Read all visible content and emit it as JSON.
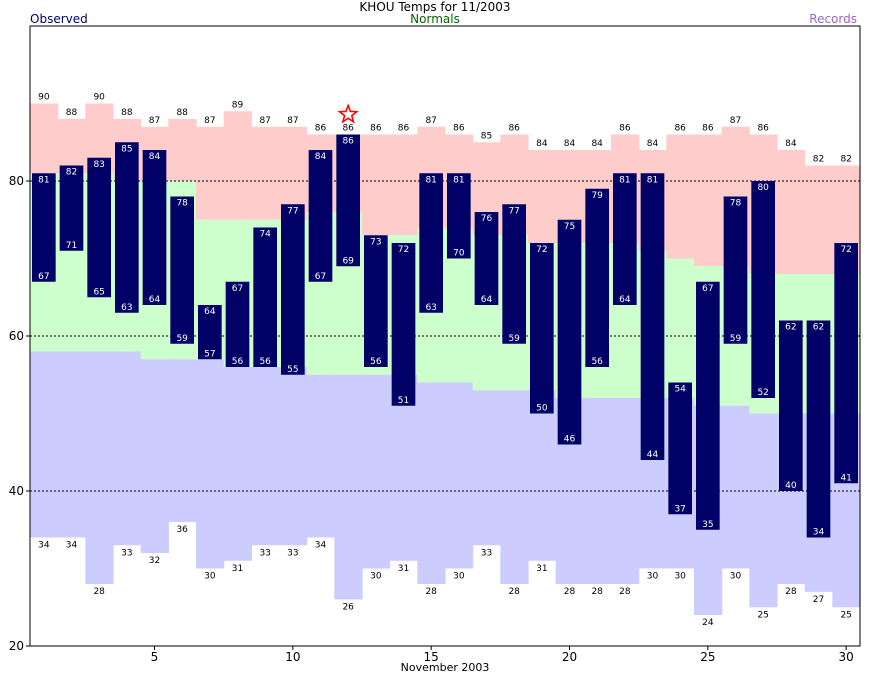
{
  "chart_data": {
    "type": "bar",
    "title": "KHOU Temps for 11/2003",
    "legend": {
      "observed": "Observed",
      "normals": "Normals",
      "records": "Records"
    },
    "xlabel": "November 2003",
    "ylim": [
      20,
      100
    ],
    "yticks": [
      20,
      40,
      60,
      80
    ],
    "xticks": [
      5,
      10,
      15,
      20,
      25,
      30
    ],
    "grid_y": [
      40,
      60,
      80
    ],
    "days": [
      1,
      2,
      3,
      4,
      5,
      6,
      7,
      8,
      9,
      10,
      11,
      12,
      13,
      14,
      15,
      16,
      17,
      18,
      19,
      20,
      21,
      22,
      23,
      24,
      25,
      26,
      27,
      28,
      29,
      30
    ],
    "observed_high": [
      81,
      82,
      83,
      85,
      84,
      78,
      64,
      67,
      74,
      77,
      84,
      86,
      73,
      72,
      81,
      81,
      76,
      77,
      72,
      75,
      79,
      81,
      81,
      54,
      67,
      78,
      80,
      62,
      62,
      72
    ],
    "observed_low": [
      67,
      71,
      65,
      63,
      64,
      59,
      57,
      56,
      56,
      55,
      67,
      69,
      56,
      51,
      63,
      70,
      64,
      59,
      50,
      46,
      56,
      64,
      44,
      37,
      35,
      59,
      52,
      40,
      34,
      41
    ],
    "normal_high": [
      81,
      81,
      81,
      80,
      80,
      80,
      75,
      75,
      75,
      75,
      76,
      76,
      73,
      73,
      74,
      74,
      73,
      73,
      72,
      72,
      72,
      72,
      71,
      70,
      69,
      69,
      68,
      68,
      68,
      68
    ],
    "normal_low": [
      58,
      58,
      58,
      58,
      57,
      57,
      57,
      56,
      56,
      56,
      55,
      55,
      55,
      55,
      54,
      54,
      53,
      53,
      53,
      52,
      52,
      52,
      52,
      52,
      51,
      51,
      50,
      50,
      50,
      50
    ],
    "record_high": [
      90,
      88,
      90,
      88,
      87,
      88,
      87,
      89,
      87,
      87,
      86,
      86,
      86,
      86,
      87,
      86,
      85,
      86,
      84,
      84,
      84,
      86,
      84,
      86,
      86,
      87,
      86,
      84,
      82,
      82
    ],
    "record_low": [
      34,
      34,
      28,
      33,
      32,
      36,
      30,
      31,
      33,
      33,
      34,
      26,
      30,
      31,
      28,
      30,
      33,
      28,
      31,
      28,
      28,
      28,
      30,
      30,
      24,
      30,
      25,
      28,
      27,
      25
    ],
    "record_marker_day": 12,
    "colors": {
      "records_band": "#ffcccc",
      "normals_band": "#ccffcc",
      "below_normal": "#ccccff",
      "observed_bar": "#000066",
      "observed_label": "#ffffff",
      "record_star": "#ff0000",
      "grid": "#000000"
    }
  }
}
